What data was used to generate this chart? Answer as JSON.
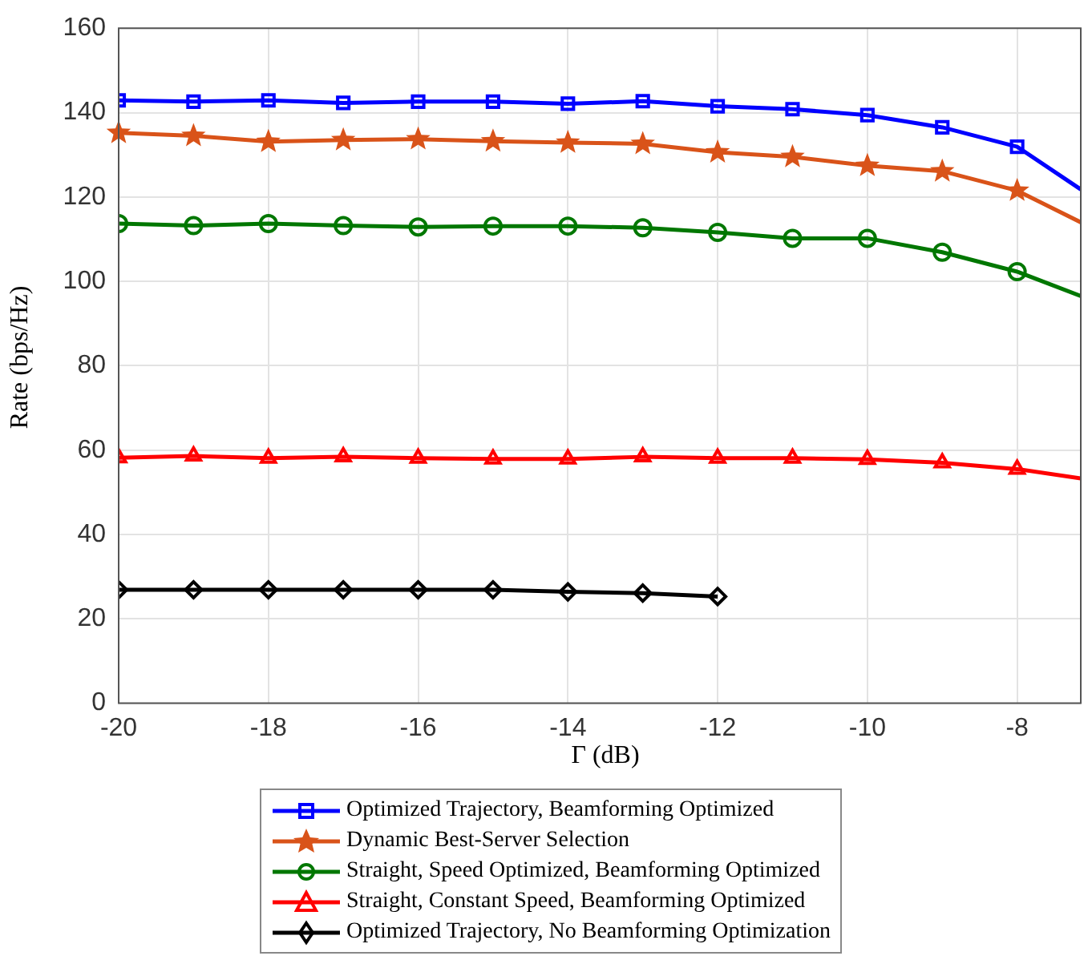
{
  "chart_data": {
    "type": "line",
    "xlabel": "Γ (dB)",
    "ylabel": "Rate (bps/Hz)",
    "x": [
      -20,
      -19,
      -18,
      -17,
      -16,
      -15,
      -14,
      -13,
      -12,
      -11,
      -10,
      -9,
      -8,
      -7.15
    ],
    "xlim": [
      -20,
      -7.15
    ],
    "xticks": [
      -20,
      -18,
      -16,
      -14,
      -12,
      -10,
      -8
    ],
    "ylim": [
      0,
      160
    ],
    "yticks": [
      0,
      20,
      40,
      60,
      80,
      100,
      120,
      140,
      160
    ],
    "grid": true,
    "legend": "bottom",
    "line_style": "solid",
    "series": [
      {
        "name": "Optimized Trajectory, Beamforming Optimized",
        "color": "#0000ff",
        "marker": "square",
        "values": [
          142.9,
          142.6,
          142.9,
          142.3,
          142.6,
          142.6,
          142.1,
          142.7,
          141.5,
          140.8,
          139.4,
          136.5,
          131.9,
          121.8
        ]
      },
      {
        "name": "Dynamic Best-Server Selection",
        "color": "#d95319",
        "marker": "star",
        "values": [
          135.2,
          134.5,
          133.1,
          133.5,
          133.7,
          133.2,
          132.9,
          132.6,
          130.6,
          129.5,
          127.4,
          126.1,
          121.5,
          114.0
        ]
      },
      {
        "name": "Straight, Speed Optimized, Beamforming Optimized",
        "color": "#007700",
        "marker": "circle",
        "values": [
          113.7,
          113.2,
          113.7,
          113.2,
          112.9,
          113.1,
          113.1,
          112.7,
          111.6,
          110.2,
          110.2,
          106.9,
          102.3,
          96.5
        ]
      },
      {
        "name": "Straight, Constant Speed, Beamforming Optimized",
        "color": "#ff0000",
        "marker": "triangle",
        "values": [
          58.2,
          58.6,
          58.1,
          58.4,
          58.1,
          57.9,
          57.9,
          58.4,
          58.1,
          58.1,
          57.8,
          57.0,
          55.5,
          53.3
        ]
      },
      {
        "name": "Optimized Trajectory, No Beamforming Optimization",
        "color": "#000000",
        "marker": "diamond",
        "values": [
          26.9,
          26.9,
          26.9,
          26.9,
          26.9,
          26.9,
          26.4,
          26.1,
          25.3,
          null,
          null,
          null,
          null,
          null
        ]
      }
    ]
  }
}
